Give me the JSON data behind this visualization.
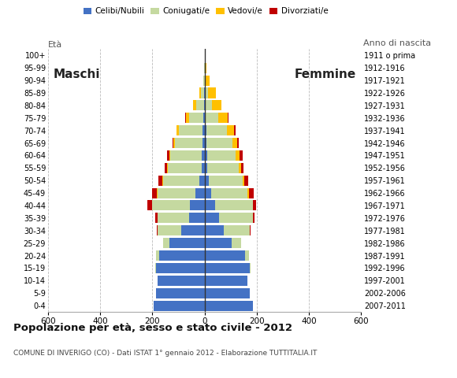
{
  "age_groups": [
    "100+",
    "95-99",
    "90-94",
    "85-89",
    "80-84",
    "75-79",
    "70-74",
    "65-69",
    "60-64",
    "55-59",
    "50-54",
    "45-49",
    "40-44",
    "35-39",
    "30-34",
    "25-29",
    "20-24",
    "15-19",
    "10-14",
    "5-9",
    "0-4"
  ],
  "birth_years": [
    "1911 o prima",
    "1912-1916",
    "1917-1921",
    "1922-1926",
    "1927-1931",
    "1932-1936",
    "1937-1941",
    "1942-1946",
    "1947-1951",
    "1952-1956",
    "1957-1961",
    "1962-1966",
    "1967-1971",
    "1972-1976",
    "1977-1981",
    "1982-1986",
    "1987-1991",
    "1992-1996",
    "1997-2001",
    "2002-2006",
    "2007-2011"
  ],
  "male": {
    "celibi": [
      0,
      0,
      0,
      2,
      3,
      4,
      8,
      8,
      12,
      12,
      20,
      35,
      55,
      60,
      90,
      135,
      175,
      185,
      180,
      185,
      195
    ],
    "coniugati": [
      0,
      2,
      4,
      12,
      30,
      55,
      90,
      105,
      120,
      130,
      140,
      145,
      145,
      120,
      90,
      25,
      10,
      3,
      0,
      0,
      0
    ],
    "vedovi": [
      0,
      0,
      2,
      5,
      10,
      12,
      8,
      5,
      3,
      2,
      2,
      2,
      1,
      0,
      0,
      0,
      0,
      0,
      0,
      0,
      0
    ],
    "divorziati": [
      0,
      0,
      0,
      0,
      0,
      3,
      2,
      3,
      10,
      8,
      15,
      18,
      18,
      10,
      3,
      0,
      0,
      0,
      0,
      0,
      0
    ]
  },
  "female": {
    "nubili": [
      0,
      0,
      0,
      1,
      2,
      3,
      6,
      8,
      10,
      10,
      15,
      25,
      40,
      55,
      75,
      105,
      155,
      175,
      165,
      175,
      185
    ],
    "coniugate": [
      0,
      2,
      5,
      12,
      28,
      50,
      80,
      98,
      110,
      120,
      130,
      140,
      145,
      130,
      100,
      35,
      15,
      3,
      0,
      0,
      0
    ],
    "vedove": [
      0,
      5,
      15,
      30,
      35,
      35,
      28,
      20,
      15,
      10,
      8,
      5,
      2,
      0,
      0,
      0,
      0,
      0,
      0,
      0,
      0
    ],
    "divorziate": [
      0,
      0,
      0,
      0,
      0,
      5,
      5,
      5,
      12,
      8,
      15,
      18,
      10,
      8,
      3,
      0,
      0,
      0,
      0,
      0,
      0
    ]
  },
  "colors": {
    "celibi": "#4472c4",
    "coniugati": "#c5d9a0",
    "vedovi": "#ffc000",
    "divorziati": "#c00000"
  },
  "xlim": 600,
  "xticks": [
    -600,
    -400,
    -200,
    0,
    200,
    400,
    600
  ],
  "xtick_labels": [
    "600",
    "400",
    "200",
    "0",
    "200",
    "400",
    "600"
  ],
  "title": "Popolazione per età, sesso e stato civile - 2012",
  "subtitle": "COMUNE DI INVERIGO (CO) - Dati ISTAT 1° gennaio 2012 - Elaborazione TUTTITALIA.IT",
  "label_eta": "Età",
  "label_anno": "Anno di nascita",
  "label_maschi": "Maschi",
  "label_femmine": "Femmine",
  "legend_labels": [
    "Celibi/Nubili",
    "Coniugati/e",
    "Vedovi/e",
    "Divorziati/e"
  ]
}
